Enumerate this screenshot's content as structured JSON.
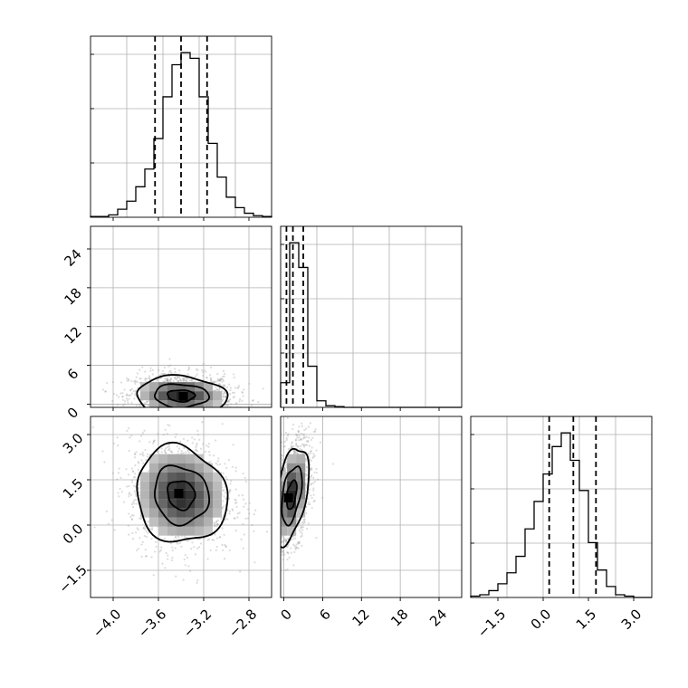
{
  "chart_data": {
    "type": "corner",
    "params": [
      {
        "range": [
          -4.2,
          -2.6
        ]
      },
      {
        "range": [
          -0.5,
          27.5
        ]
      },
      {
        "range": [
          -2.4,
          3.6
        ]
      }
    ],
    "xticks": [
      {
        "values": [
          -4.0,
          -3.6,
          -3.2,
          -2.8
        ],
        "labels": [
          "−4.0",
          "−3.6",
          "−3.2",
          "−2.8"
        ]
      },
      {
        "values": [
          0,
          6,
          12,
          18,
          24
        ],
        "labels": [
          "0",
          "6",
          "12",
          "18",
          "24"
        ]
      },
      {
        "values": [
          -1.5,
          0.0,
          1.5,
          3.0
        ],
        "labels": [
          "−1.5",
          "0.0",
          "1.5",
          "3.0"
        ]
      }
    ],
    "yticks": [
      null,
      {
        "values": [
          0,
          6,
          12,
          18,
          24
        ],
        "labels": [
          "0",
          "6",
          "12",
          "18",
          "24"
        ]
      },
      {
        "values": [
          -1.5,
          0.0,
          1.5,
          3.0
        ],
        "labels": [
          "−1.5",
          "0.0",
          "1.5",
          "3.0"
        ]
      }
    ],
    "histograms": [
      {
        "bins": [
          -4.2,
          -2.6
        ],
        "counts": [
          1,
          1,
          3,
          10,
          20,
          38,
          60,
          98,
          150,
          190,
          205,
          198,
          150,
          92,
          50,
          25,
          12,
          5,
          2,
          1
        ],
        "quantiles": [
          -3.63,
          -3.4,
          -3.17
        ]
      },
      {
        "bins": [
          -0.5,
          27.5
        ],
        "counts": [
          15,
          100,
          85,
          25,
          4,
          1,
          0.5,
          0,
          0,
          0,
          0,
          0,
          0,
          0,
          0,
          0,
          0,
          0,
          0,
          0
        ],
        "quantiles": [
          0.4,
          1.4,
          3.0
        ]
      },
      {
        "bins": [
          -2.4,
          3.6
        ],
        "counts": [
          1,
          2,
          5,
          10,
          18,
          30,
          50,
          70,
          90,
          110,
          120,
          100,
          78,
          40,
          20,
          8,
          2,
          1,
          0,
          0
        ],
        "quantiles": [
          0.2,
          1.0,
          1.75
        ]
      }
    ],
    "pairs": [
      {
        "row": 1,
        "col": 0,
        "center": [
          -3.4,
          1.3
        ],
        "sigma": [
          0.2,
          1.5
        ],
        "rho": -0.05,
        "contours_sigma": [
          0.6,
          1.2,
          2.0
        ],
        "peak": [
          -3.38,
          1.2
        ]
      },
      {
        "row": 2,
        "col": 0,
        "center": [
          -3.4,
          1.0
        ],
        "sigma": [
          0.2,
          0.8
        ],
        "rho": -0.1,
        "contours_sigma": [
          0.6,
          1.2,
          2.0
        ],
        "peak": [
          -3.42,
          1.05
        ]
      },
      {
        "row": 2,
        "col": 1,
        "center": [
          1.2,
          1.0
        ],
        "sigma": [
          1.3,
          0.8
        ],
        "rho": 0.45,
        "contours_sigma": [
          0.6,
          1.2,
          2.0
        ],
        "peak": [
          0.7,
          0.9
        ]
      }
    ]
  }
}
